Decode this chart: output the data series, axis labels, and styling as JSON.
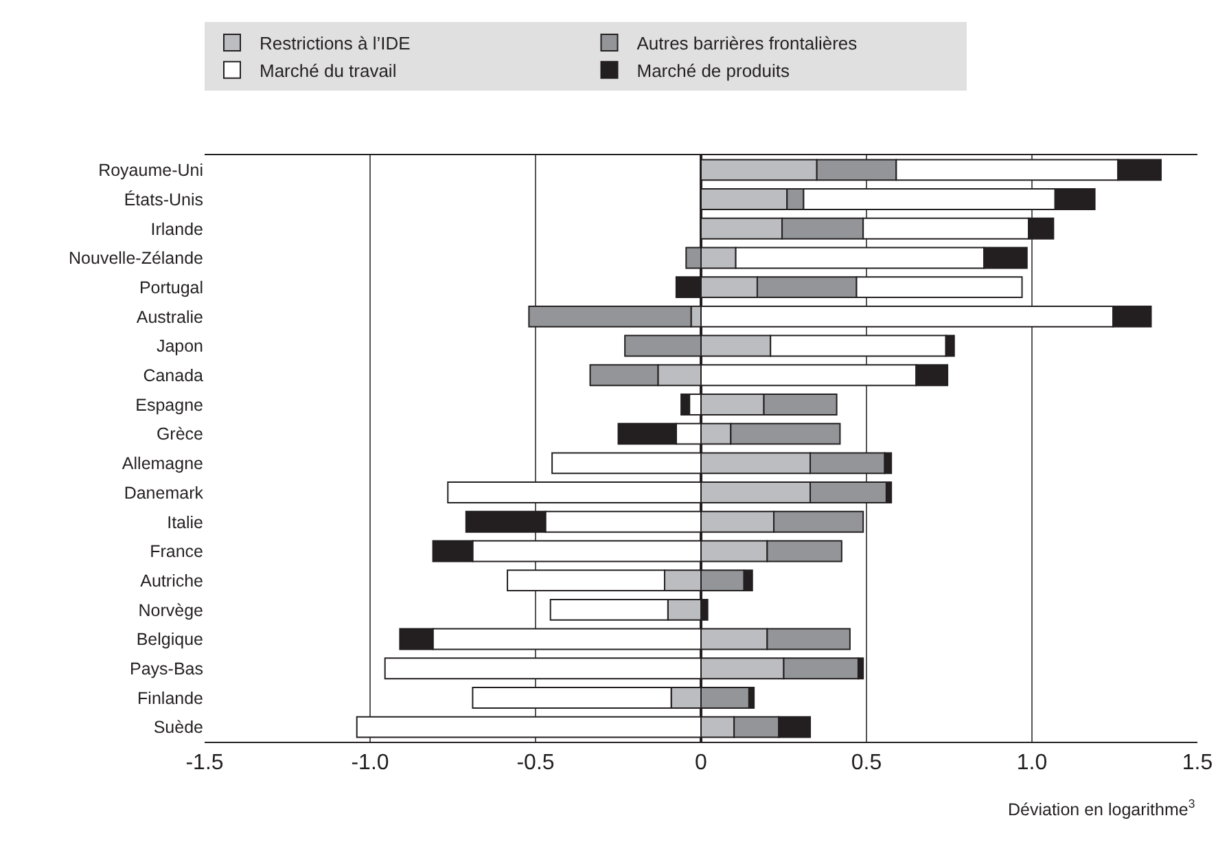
{
  "chart_data": {
    "type": "bar",
    "orientation": "horizontal",
    "stacked": true,
    "xlabel": "Déviation en logarithme$^{3}$",
    "categories": [
      "Royaume-Uni",
      "États-Unis",
      "Irlande",
      "Nouvelle-Zélande",
      "Portugal",
      "Australie",
      "Japon",
      "Canada",
      "Espagne",
      "Grèce",
      "Allemagne",
      "Danemark",
      "Italie",
      "France",
      "Autriche",
      "Norvège",
      "Belgique",
      "Pays-Bas",
      "Finlande",
      "Suède"
    ],
    "series": [
      {
        "name": "Restrictions à l’IDE",
        "color": "#bcbdc0",
        "values": [
          0.35,
          0.26,
          0.245,
          0.105,
          0.17,
          -0.03,
          0.21,
          -0.13,
          0.19,
          0.09,
          0.33,
          0.33,
          0.22,
          0.2,
          -0.11,
          -0.1,
          0.2,
          0.25,
          -0.09,
          0.1
        ]
      },
      {
        "name": "Autres barrières frontalières",
        "color": "#939598",
        "values": [
          0.24,
          0.05,
          0.245,
          -0.045,
          0.3,
          -0.49,
          -0.23,
          -0.205,
          0.22,
          0.33,
          0.225,
          0.23,
          0.27,
          0.225,
          0.13,
          null,
          0.25,
          0.225,
          0.145,
          0.135
        ]
      },
      {
        "name": "Marché du travail",
        "color": "#ffffff",
        "values": [
          0.67,
          0.76,
          0.5,
          0.75,
          0.5,
          1.245,
          0.53,
          0.65,
          -0.035,
          -0.075,
          -0.45,
          -0.765,
          -0.47,
          -0.69,
          -0.475,
          -0.355,
          -0.81,
          -0.955,
          -0.6,
          -1.04
        ]
      },
      {
        "name": "Marché de produits",
        "color": "#231f20",
        "values": [
          0.13,
          0.12,
          0.075,
          0.13,
          -0.075,
          0.115,
          0.025,
          0.095,
          -0.025,
          -0.175,
          0.02,
          0.015,
          -0.24,
          -0.12,
          0.025,
          0.02,
          -0.1,
          0.015,
          0.015,
          0.095
        ]
      }
    ],
    "xlim": [
      -1.5,
      1.5
    ],
    "xticks": [
      {
        "value": -1.5,
        "label": "-1.5"
      },
      {
        "value": -1.0,
        "label": "-1.0"
      },
      {
        "value": -0.5,
        "label": "-0.5"
      },
      0,
      {
        "value": 0.5,
        "label": "0.5"
      },
      {
        "value": 1.0,
        "label": "1.0"
      },
      {
        "value": 1.5,
        "label": "1.5"
      }
    ],
    "grid": "x",
    "legend": "top"
  }
}
